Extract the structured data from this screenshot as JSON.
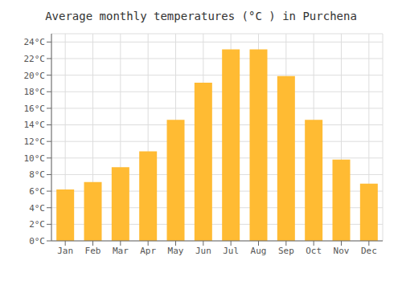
{
  "chart_data": {
    "type": "bar",
    "title": "Average monthly temperatures (°C ) in Purchena",
    "categories": [
      "Jan",
      "Feb",
      "Mar",
      "Apr",
      "May",
      "Jun",
      "Jul",
      "Aug",
      "Sep",
      "Oct",
      "Nov",
      "Dec"
    ],
    "values": [
      6.2,
      7.1,
      8.9,
      10.8,
      14.6,
      19.1,
      23.1,
      23.1,
      19.9,
      14.6,
      9.8,
      6.9
    ],
    "color": "#FFBB33",
    "ylim": [
      0,
      25
    ],
    "yticks": [
      {
        "value": 0,
        "label": "0°C"
      },
      {
        "value": 2,
        "label": "2°C"
      },
      {
        "value": 4,
        "label": "4°C"
      },
      {
        "value": 6,
        "label": "6°C"
      },
      {
        "value": 8,
        "label": "8°C"
      },
      {
        "value": 10,
        "label": "10°C"
      },
      {
        "value": 12,
        "label": "12°C"
      },
      {
        "value": 14,
        "label": "14°C"
      },
      {
        "value": 16,
        "label": "16°C"
      },
      {
        "value": 18,
        "label": "18°C"
      },
      {
        "value": 20,
        "label": "20°C"
      },
      {
        "value": 22,
        "label": "22°C"
      },
      {
        "value": 24,
        "label": "24°C"
      }
    ],
    "grid": true
  }
}
